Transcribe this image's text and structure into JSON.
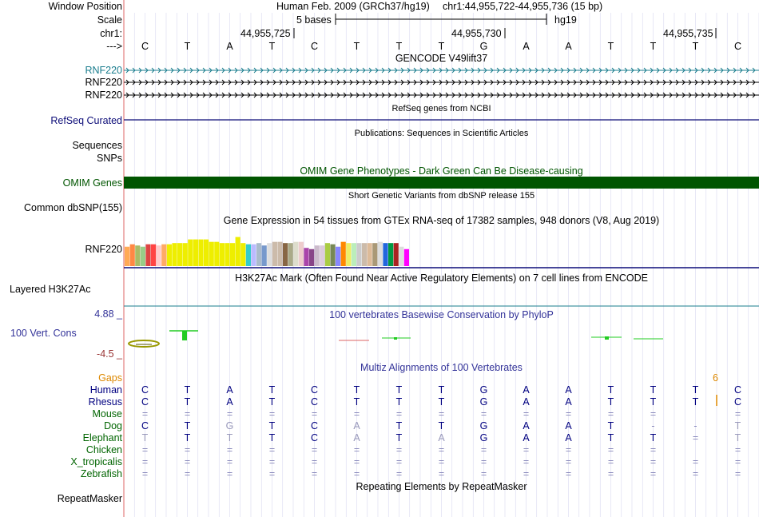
{
  "header": {
    "window_position_label": "Window Position",
    "scale_label": "Scale",
    "chrom_label": "chr1:",
    "arrow_label": "--->",
    "assembly_text": "Human Feb. 2009 (GRCh37/hg19)",
    "position_text": "chr1:44,955,722-44,955,736 (15 bp)",
    "scale_text": "5 bases",
    "scale_db": "hg19",
    "ruler_ticks": [
      "44,955,725",
      "44,955,730",
      "44,955,735"
    ],
    "bases": [
      "C",
      "T",
      "A",
      "T",
      "C",
      "T",
      "T",
      "T",
      "G",
      "A",
      "A",
      "T",
      "T",
      "T",
      "C"
    ]
  },
  "tracks": {
    "gencode": {
      "title": "GENCODE V49lift37",
      "rows": [
        "RNF220",
        "RNF220",
        "RNF220"
      ],
      "color": "#1a7d8e"
    },
    "refseq": {
      "title": "RefSeq genes from NCBI",
      "label": "RefSeq Curated",
      "color": "#0c0c78"
    },
    "publications": {
      "title": "Publications: Sequences in Scientific Articles",
      "labels": [
        "Sequences",
        "SNPs"
      ]
    },
    "omim": {
      "title": "OMIM Gene Phenotypes - Dark Green Can Be Disease-causing",
      "label": "OMIM Genes",
      "color": "#005500"
    },
    "dbsnp": {
      "title": "Short Genetic Variants from dbSNP release 155",
      "label": "Common dbSNP(155)"
    },
    "gtex": {
      "title": "Gene Expression in 54 tissues from GTEx RNA-seq of 17382 samples, 948 donors (V8, Aug 2019)",
      "label": "RNF220"
    },
    "h3k27ac": {
      "title": "H3K27Ac Mark (Often Found Near Active Regulatory Elements) on 7 cell lines from ENCODE",
      "label": "Layered H3K27Ac",
      "color": "#1c7c8c"
    },
    "phylop": {
      "title": "100 vertebrates Basewise Conservation by PhyloP",
      "label": "100 Vert. Cons",
      "max": "4.88 _",
      "min": "-4.5 _",
      "color": "#333399"
    },
    "multiz": {
      "title": "Multiz Alignments of 100 Vertebrates",
      "gaps_label": "Gaps",
      "gaps_value": "6",
      "species": [
        {
          "name": "Human",
          "color": "#000080",
          "bases": [
            "C",
            "T",
            "A",
            "T",
            "C",
            "T",
            "T",
            "T",
            "G",
            "A",
            "A",
            "T",
            "T",
            "T",
            "C"
          ]
        },
        {
          "name": "Rhesus",
          "color": "#000080",
          "bases": [
            "C",
            "T",
            "A",
            "T",
            "C",
            "T",
            "T",
            "T",
            "G",
            "A",
            "A",
            "T",
            "T",
            "T",
            "C"
          ]
        },
        {
          "name": "Mouse",
          "color": "#006400",
          "bases": [
            "=",
            "=",
            "=",
            "=",
            "=",
            "=",
            "=",
            "=",
            "=",
            "=",
            "=",
            "=",
            "=",
            "",
            "="
          ]
        },
        {
          "name": "Dog",
          "color": "#006400",
          "bases": [
            "C",
            "T",
            "G",
            "T",
            "C",
            "A",
            "T",
            "T",
            "G",
            "A",
            "A",
            "T",
            "-",
            "-",
            "T"
          ]
        },
        {
          "name": "Elephant",
          "color": "#006400",
          "bases": [
            "T",
            "T",
            "T",
            "T",
            "C",
            "A",
            "T",
            "A",
            "G",
            "A",
            "A",
            "T",
            "T",
            "=",
            "T"
          ]
        },
        {
          "name": "Chicken",
          "color": "#006400",
          "bases": [
            "=",
            "=",
            "=",
            "=",
            "=",
            "=",
            "=",
            "=",
            "=",
            "=",
            "=",
            "=",
            "=",
            "",
            "="
          ]
        },
        {
          "name": "X_tropicalis",
          "color": "#006400",
          "bases": [
            "=",
            "=",
            "=",
            "=",
            "=",
            "=",
            "=",
            "=",
            "=",
            "=",
            "=",
            "=",
            "=",
            "=",
            "="
          ]
        },
        {
          "name": "Zebrafish",
          "color": "#006400",
          "bases": [
            "=",
            "=",
            "=",
            "=",
            "=",
            "=",
            "=",
            "=",
            "=",
            "=",
            "=",
            "=",
            "=",
            "=",
            "="
          ]
        }
      ]
    },
    "repeatmasker": {
      "title": "Repeating Elements by RepeatMasker",
      "label": "RepeatMasker"
    }
  },
  "colors": {
    "gencode": "#1a7d8e",
    "refseq": "#0c0c78",
    "omim": "#005500",
    "phylop": "#333399",
    "gaps": "#dd8800",
    "grid": "#d8d8f0",
    "left_edge": "#dd6666"
  },
  "gtex_bars": [
    {
      "color": "#FFAA55",
      "level": 0.8
    },
    {
      "color": "#FF8844",
      "level": 0.9
    },
    {
      "color": "#AABB66",
      "level": 0.85
    },
    {
      "color": "#99CC88",
      "level": 0.8
    },
    {
      "color": "#DD4444",
      "level": 0.9
    },
    {
      "color": "#FF4444",
      "level": 0.9
    },
    {
      "color": "#FFCCCC",
      "level": 0.85
    },
    {
      "color": "#FFAA66",
      "level": 0.9
    },
    {
      "color": "#EEEE00",
      "level": 0.9
    },
    {
      "color": "#EEEE00",
      "level": 0.95
    },
    {
      "color": "#EEEE00",
      "level": 0.95
    },
    {
      "color": "#EEEE00",
      "level": 0.95
    },
    {
      "color": "#EEEE00",
      "level": 1.1
    },
    {
      "color": "#EEEE00",
      "level": 1.1
    },
    {
      "color": "#EEEE00",
      "level": 1.1
    },
    {
      "color": "#EEEE00",
      "level": 1.1
    },
    {
      "color": "#EEEE00",
      "level": 1.0
    },
    {
      "color": "#EEEE00",
      "level": 1.0
    },
    {
      "color": "#EEEE00",
      "level": 0.95
    },
    {
      "color": "#EEEE00",
      "level": 0.95
    },
    {
      "color": "#EEEE00",
      "level": 0.95
    },
    {
      "color": "#EEEE00",
      "level": 1.2
    },
    {
      "color": "#EEEE00",
      "level": 0.95
    },
    {
      "color": "#33CCCC",
      "level": 0.9
    },
    {
      "color": "#BBBBFF",
      "level": 0.9
    },
    {
      "color": "#AABBCC",
      "level": 0.95
    },
    {
      "color": "#7799CC",
      "level": 0.85
    },
    {
      "color": "#DDDDDD",
      "level": 0.95
    },
    {
      "color": "#CCBBAA",
      "level": 1.0
    },
    {
      "color": "#CCBBAA",
      "level": 1.0
    },
    {
      "color": "#886644",
      "level": 0.95
    },
    {
      "color": "#AAAA88",
      "level": 0.95
    },
    {
      "color": "#DDDDCC",
      "level": 1.0
    },
    {
      "color": "#EECCCC",
      "level": 1.0
    },
    {
      "color": "#AA44AA",
      "level": 0.75
    },
    {
      "color": "#884488",
      "level": 0.7
    },
    {
      "color": "#CCBBCC",
      "level": 0.85
    },
    {
      "color": "#DDCCDD",
      "level": 0.85
    },
    {
      "color": "#AACC44",
      "level": 0.95
    },
    {
      "color": "#778855",
      "level": 0.9
    },
    {
      "color": "#8888FF",
      "level": 0.8
    },
    {
      "color": "#FF8800",
      "level": 1.0
    },
    {
      "color": "#EEEE66",
      "level": 0.95
    },
    {
      "color": "#BBEEBB",
      "level": 0.95
    },
    {
      "color": "#CCCCCC",
      "level": 0.95
    },
    {
      "color": "#CCBBAA",
      "level": 0.95
    },
    {
      "color": "#DDBB99",
      "level": 0.95
    },
    {
      "color": "#AA9977",
      "level": 0.95
    },
    {
      "color": "#DDDDDD",
      "level": 1.0
    },
    {
      "color": "#2266DD",
      "level": 0.95
    },
    {
      "color": "#009944",
      "level": 0.95
    },
    {
      "color": "#AA2222",
      "level": 0.95
    },
    {
      "color": "#DDDDDD",
      "level": 0.8
    },
    {
      "color": "#FF00FF",
      "level": 0.7
    }
  ]
}
